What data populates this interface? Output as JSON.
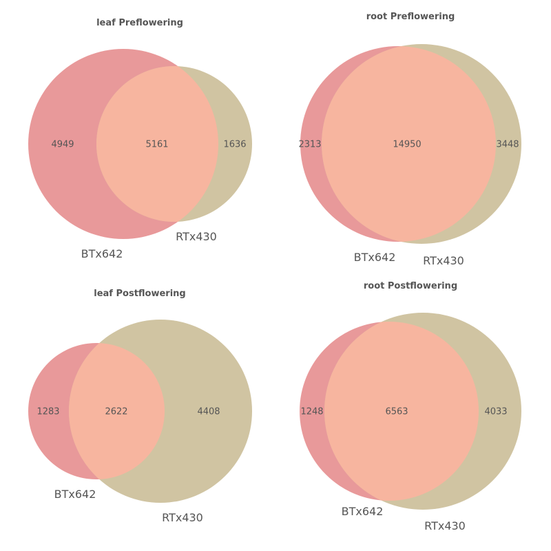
{
  "colors": {
    "set_a": "#e8999a",
    "set_b": "#d0c4a2",
    "overlap": "#f7b59f",
    "text": "#555555"
  },
  "diagrams": [
    {
      "title": "leaf Preflowering",
      "set_a_label": "BTx642",
      "set_b_label": "RTx430",
      "only_a": "4949",
      "both": "5161",
      "only_b": "1636"
    },
    {
      "title": "root Preflowering",
      "set_a_label": "BTx642",
      "set_b_label": "RTx430",
      "only_a": "2313",
      "both": "14950",
      "only_b": "3448"
    },
    {
      "title": "leaf Postflowering",
      "set_a_label": "BTx642",
      "set_b_label": "RTx430",
      "only_a": "1283",
      "both": "2622",
      "only_b": "4408"
    },
    {
      "title": "root Postflowering",
      "set_a_label": "BTx642",
      "set_b_label": "RTx430",
      "only_a": "1248",
      "both": "6563",
      "only_b": "4033"
    }
  ]
}
